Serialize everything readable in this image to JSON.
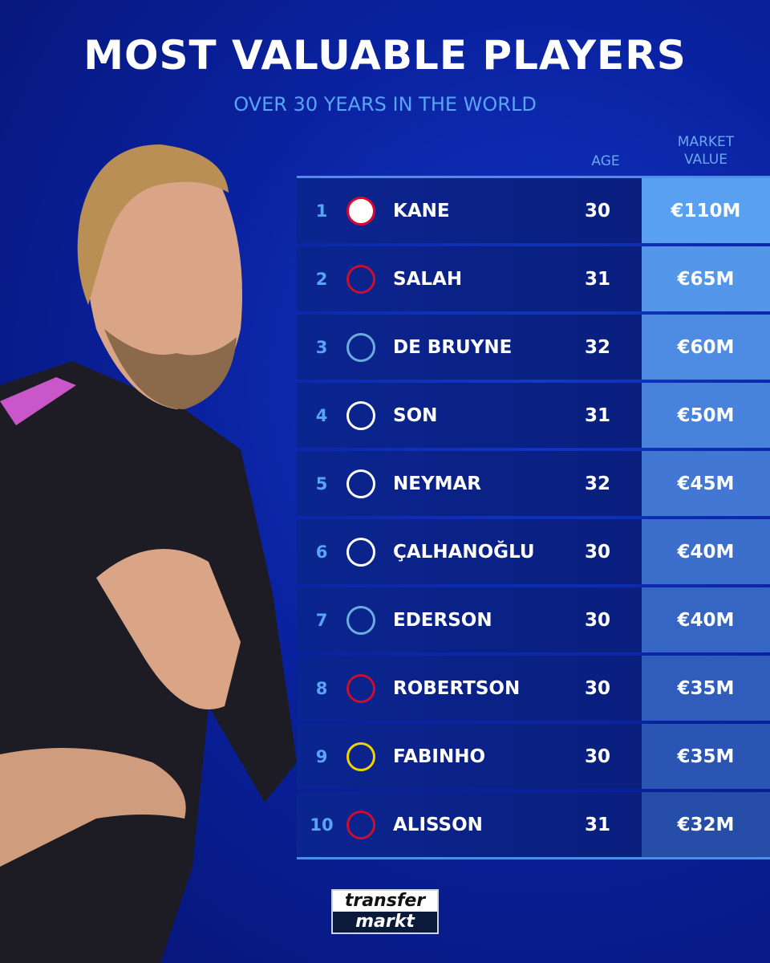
{
  "title": "MOST VALUABLE PLAYERS",
  "subtitle": "OVER 30 YEARS IN THE WORLD",
  "headers": {
    "age": "AGE",
    "market_value_line1": "MARKET",
    "market_value_line2": "VALUE"
  },
  "rows": [
    {
      "rank": "1",
      "name": "KANE",
      "age": "30",
      "value": "€110M",
      "club_icon": "bayern-munich-crest",
      "crest_color": "#dc052d",
      "value_bg": "#5aa0f0"
    },
    {
      "rank": "2",
      "name": "SALAH",
      "age": "31",
      "value": "€65M",
      "club_icon": "liverpool-crest",
      "crest_color": "#c8102e",
      "value_bg": "#5496ea"
    },
    {
      "rank": "3",
      "name": "DE BRUYNE",
      "age": "32",
      "value": "€60M",
      "club_icon": "manchester-city-crest",
      "crest_color": "#6cabdd",
      "value_bg": "#4e8ce3"
    },
    {
      "rank": "4",
      "name": "SON",
      "age": "31",
      "value": "€50M",
      "club_icon": "tottenham-crest",
      "crest_color": "#ffffff",
      "value_bg": "#4882dc"
    },
    {
      "rank": "5",
      "name": "NEYMAR",
      "age": "32",
      "value": "€45M",
      "club_icon": "al-hilal-crest",
      "crest_color": "#ffffff",
      "value_bg": "#4278d4"
    },
    {
      "rank": "6",
      "name": "ÇALHANOĞLU",
      "age": "30",
      "value": "€40M",
      "club_icon": "inter-crest",
      "crest_color": "#ffffff",
      "value_bg": "#3c6ecc"
    },
    {
      "rank": "7",
      "name": "EDERSON",
      "age": "30",
      "value": "€40M",
      "club_icon": "manchester-city-crest",
      "crest_color": "#6cabdd",
      "value_bg": "#3666c4"
    },
    {
      "rank": "8",
      "name": "ROBERTSON",
      "age": "30",
      "value": "€35M",
      "club_icon": "liverpool-crest",
      "crest_color": "#c8102e",
      "value_bg": "#305dbb"
    },
    {
      "rank": "9",
      "name": "FABINHO",
      "age": "30",
      "value": "€35M",
      "club_icon": "al-ittihad-crest",
      "crest_color": "#f5d000",
      "value_bg": "#2b55b2"
    },
    {
      "rank": "10",
      "name": "ALISSON",
      "age": "31",
      "value": "€32M",
      "club_icon": "liverpool-crest",
      "crest_color": "#c8102e",
      "value_bg": "#264ea8"
    }
  ],
  "logo": {
    "line1": "transfer",
    "line2": "markt"
  }
}
